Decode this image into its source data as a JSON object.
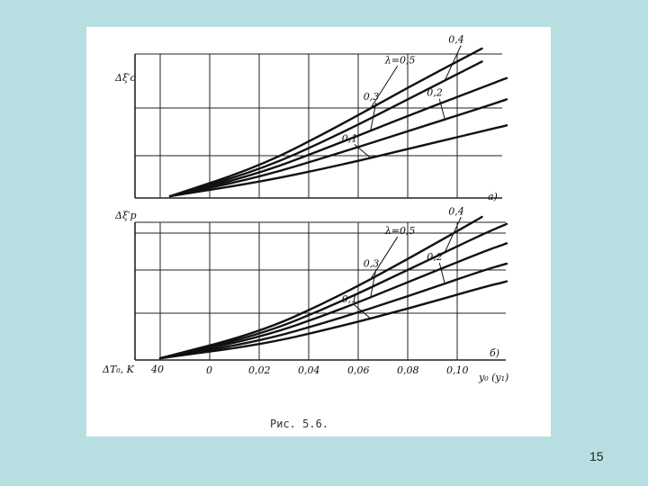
{
  "slide": {
    "number": "15",
    "background": "#b7dfe1"
  },
  "figure": {
    "caption": "Рис. 5.6.",
    "grid_color": "#222222",
    "curve_color": "#111111"
  },
  "chart_data": [
    {
      "type": "line",
      "panel": "top",
      "ylabel": "Δξ′c",
      "y_ticks": [],
      "curve_label_prefix": "λ=",
      "series": [
        {
          "name": "0,1",
          "x": [
            -0.016,
            0.02,
            0.05,
            0.08,
            0.11,
            0.12
          ],
          "y": [
            0.0,
            0.12,
            0.25,
            0.4,
            0.55,
            0.6
          ]
        },
        {
          "name": "0,2",
          "x": [
            -0.016,
            0.02,
            0.05,
            0.08,
            0.11,
            0.12
          ],
          "y": [
            0.0,
            0.16,
            0.35,
            0.55,
            0.75,
            0.82
          ]
        },
        {
          "name": "0,3",
          "x": [
            -0.016,
            0.02,
            0.05,
            0.08,
            0.11,
            0.12
          ],
          "y": [
            0.0,
            0.19,
            0.43,
            0.68,
            0.92,
            1.0
          ]
        },
        {
          "name": "0,4",
          "x": [
            -0.016,
            0.02,
            0.05,
            0.08,
            0.11
          ],
          "y": [
            0.0,
            0.22,
            0.5,
            0.82,
            1.14
          ]
        },
        {
          "name": "0,5",
          "x": [
            -0.016,
            0.02,
            0.05,
            0.08,
            0.11
          ],
          "y": [
            0.0,
            0.25,
            0.57,
            0.92,
            1.25
          ]
        }
      ],
      "ylim": [
        0,
        1.25
      ]
    },
    {
      "type": "line",
      "panel": "bottom",
      "panel_labels": [
        "а)",
        "б)"
      ],
      "ylabel": "Δξ′p",
      "xlabel": "y₀ (y₁)",
      "x_ticks": [
        "0",
        "0,02",
        "0,04",
        "0,06",
        "0,08",
        "0,10"
      ],
      "x_tick_values": [
        0,
        0.02,
        0.04,
        0.06,
        0.08,
        0.1
      ],
      "secondary_axis_label": "ΔT₀, K",
      "secondary_ticks": [
        "40"
      ],
      "curve_label_prefix": "λ=",
      "series": [
        {
          "name": "0,1",
          "x": [
            -0.02,
            0.02,
            0.05,
            0.08,
            0.11,
            0.12
          ],
          "y": [
            0.0,
            0.15,
            0.34,
            0.56,
            0.8,
            0.87
          ]
        },
        {
          "name": "0,2",
          "x": [
            -0.02,
            0.02,
            0.05,
            0.08,
            0.11,
            0.12
          ],
          "y": [
            0.0,
            0.19,
            0.43,
            0.7,
            0.99,
            1.07
          ]
        },
        {
          "name": "0,3",
          "x": [
            -0.02,
            0.02,
            0.05,
            0.08,
            0.11,
            0.12
          ],
          "y": [
            0.0,
            0.23,
            0.52,
            0.86,
            1.2,
            1.3
          ]
        },
        {
          "name": "0,4",
          "x": [
            -0.02,
            0.02,
            0.05,
            0.08,
            0.11,
            0.12
          ],
          "y": [
            0.0,
            0.26,
            0.6,
            1.0,
            1.4,
            1.52
          ]
        },
        {
          "name": "0,5",
          "x": [
            -0.02,
            0.02,
            0.05,
            0.08,
            0.11
          ],
          "y": [
            0.0,
            0.29,
            0.67,
            1.12,
            1.6
          ]
        }
      ],
      "ylim": [
        0,
        1.6
      ]
    }
  ]
}
